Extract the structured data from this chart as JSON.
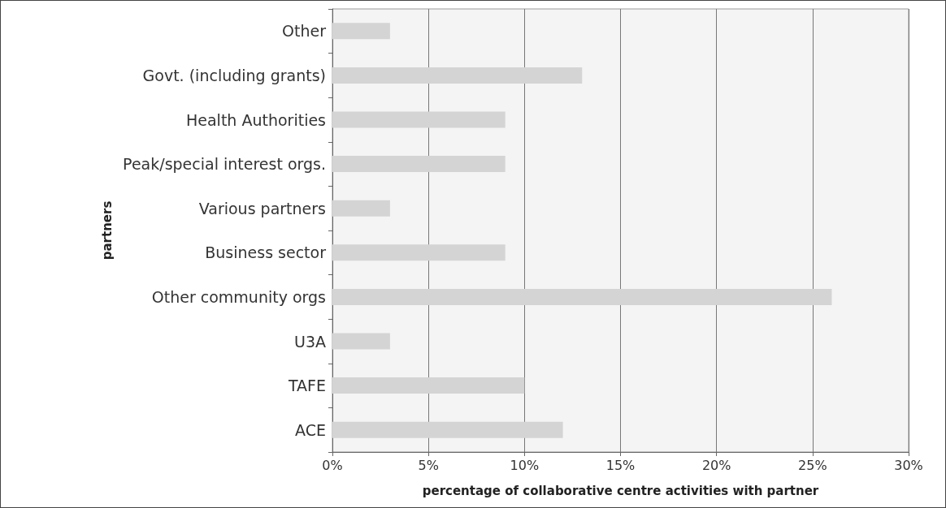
{
  "chart_data": {
    "type": "bar",
    "orientation": "horizontal",
    "categories": [
      "Other",
      "Govt. (including grants)",
      "Health Authorities",
      "Peak/special interest orgs.",
      "Various partners",
      "Business sector",
      "Other community orgs",
      "U3A",
      "TAFE",
      "ACE"
    ],
    "values": [
      3,
      13,
      9,
      9,
      3,
      9,
      26,
      3,
      10,
      12
    ],
    "color": "#d4d4d4",
    "xlabel": "percentage of collaborative centre activities with partner",
    "ylabel": "partners",
    "xlim": [
      0,
      30
    ],
    "xticks": [
      {
        "value": 0,
        "label": "0%"
      },
      {
        "value": 5,
        "label": "5%"
      },
      {
        "value": 10,
        "label": "10%"
      },
      {
        "value": 15,
        "label": "15%"
      },
      {
        "value": 20,
        "label": "20%"
      },
      {
        "value": 25,
        "label": "25%"
      },
      {
        "value": 30,
        "label": "30%"
      }
    ],
    "grid": "x"
  }
}
